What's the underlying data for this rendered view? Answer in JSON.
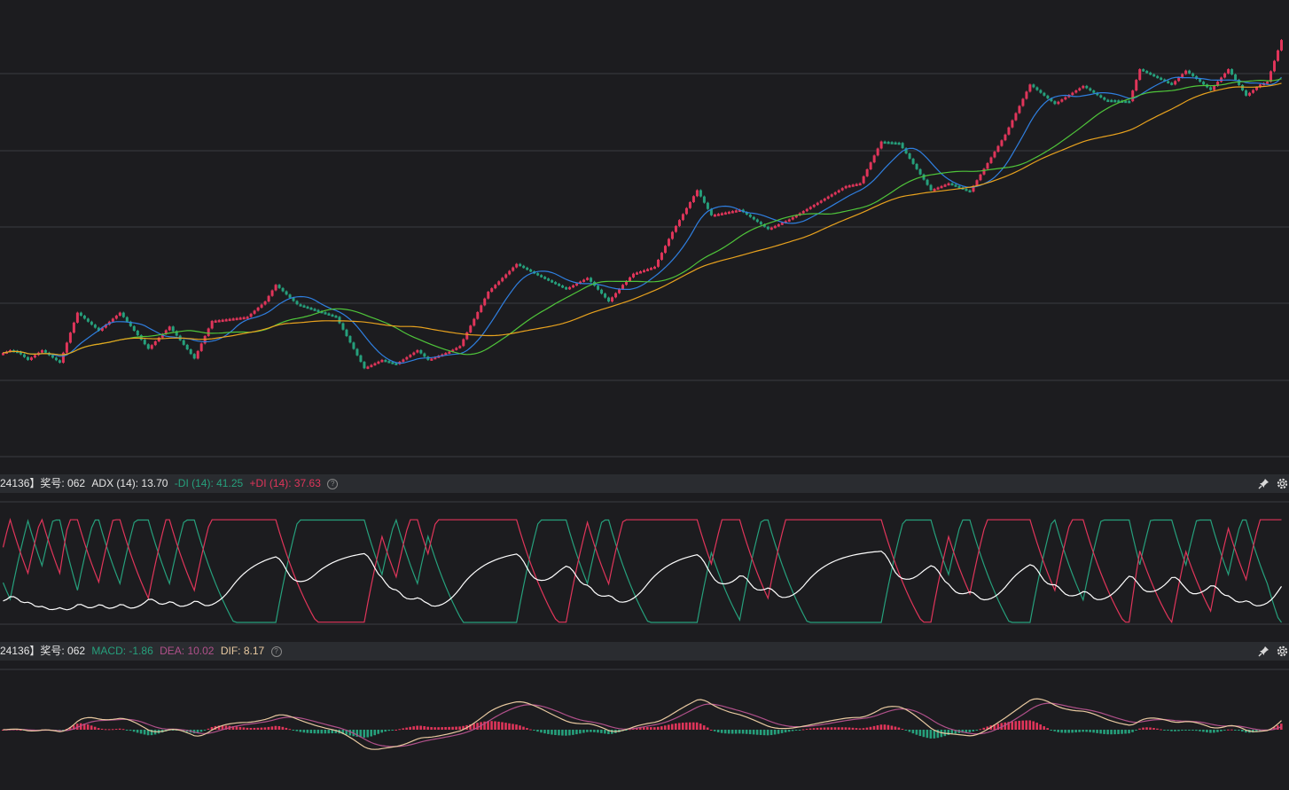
{
  "colors": {
    "up": "#e0355a",
    "down": "#26a07c",
    "ma_fast": "#2f7fe0",
    "ma_mid": "#4fc53a",
    "ma_slow": "#e8a21e",
    "adx": "#ffffff",
    "minus_di": "#26a07c",
    "plus_di": "#e0355a",
    "macd_pos": "#e0355a",
    "macd_neg": "#26a07c",
    "dea": "#b0508a",
    "dif": "#e8c9a0"
  },
  "indicator_bars": {
    "adx": {
      "prefix": "24136】奖号: 062",
      "adx_label": "ADX (14): 13.70",
      "minus_di_label": "-DI (14): 41.25",
      "plus_di_label": "+DI (14): 37.63",
      "help_icon": "?"
    },
    "macd": {
      "prefix": "24136】奖号: 062",
      "macd_label": "MACD: -1.86",
      "dea_label": "DEA: 10.02",
      "dif_label": "DIF: 8.17",
      "help_icon": "?"
    },
    "pin_icon": "pin-icon",
    "settings_icon": "gear-icon"
  },
  "chart_data": [
    {
      "type": "renko",
      "grid": true,
      "ylim": [
        0,
        100
      ],
      "anchors": [
        [
          0,
          0.3
        ],
        [
          3,
          0.33
        ],
        [
          5,
          0.32
        ],
        [
          8,
          0.26
        ],
        [
          12,
          0.33
        ],
        [
          17,
          0.24
        ],
        [
          22,
          0.6
        ],
        [
          28,
          0.47
        ],
        [
          34,
          0.6
        ],
        [
          42,
          0.34
        ],
        [
          48,
          0.5
        ],
        [
          55,
          0.27
        ],
        [
          60,
          0.54
        ],
        [
          70,
          0.57
        ],
        [
          75,
          0.68
        ],
        [
          78,
          0.8
        ],
        [
          84,
          0.66
        ],
        [
          95,
          0.57
        ],
        [
          103,
          0.2
        ],
        [
          108,
          0.26
        ],
        [
          112,
          0.23
        ],
        [
          118,
          0.33
        ],
        [
          121,
          0.26
        ],
        [
          127,
          0.32
        ],
        [
          130,
          0.36
        ],
        [
          138,
          0.75
        ],
        [
          146,
          0.95
        ],
        [
          152,
          0.87
        ],
        [
          160,
          0.77
        ],
        [
          166,
          0.85
        ],
        [
          172,
          0.68
        ],
        [
          176,
          0.8
        ],
        [
          179,
          0.88
        ],
        [
          185,
          0.93
        ],
        [
          190,
          1.18
        ],
        [
          197,
          1.48
        ],
        [
          201,
          1.3
        ],
        [
          209,
          1.34
        ],
        [
          217,
          1.2
        ],
        [
          223,
          1.27
        ],
        [
          229,
          1.36
        ],
        [
          239,
          1.51
        ],
        [
          243,
          1.53
        ],
        [
          249,
          1.83
        ],
        [
          254,
          1.82
        ],
        [
          263,
          1.48
        ],
        [
          268,
          1.53
        ],
        [
          274,
          1.47
        ],
        [
          284,
          1.88
        ],
        [
          291,
          2.24
        ],
        [
          298,
          2.1
        ],
        [
          306,
          2.23
        ],
        [
          312,
          2.13
        ],
        [
          319,
          2.12
        ],
        [
          322,
          2.35
        ],
        [
          331,
          2.24
        ],
        [
          335,
          2.34
        ],
        [
          342,
          2.2
        ],
        [
          347,
          2.35
        ],
        [
          352,
          2.16
        ],
        [
          356,
          2.24
        ],
        [
          358,
          2.26
        ],
        [
          362,
          2.56
        ]
      ],
      "moving_averages": [
        {
          "name": "",
          "period": 10
        },
        {
          "name": "",
          "period": 30
        },
        {
          "name": "",
          "period": 50
        }
      ]
    },
    {
      "type": "line",
      "series": [
        {
          "name": "ADX",
          "last_value": 13.7
        },
        {
          "name": "-DI",
          "last_value": 41.25
        },
        {
          "name": "+DI",
          "last_value": 37.63
        }
      ]
    },
    {
      "type": "bar",
      "series": [
        {
          "name": "MACD",
          "last_value": -1.86
        },
        {
          "name": "DEA",
          "last_value": 10.02
        },
        {
          "name": "DIF",
          "last_value": 8.17
        }
      ]
    }
  ]
}
